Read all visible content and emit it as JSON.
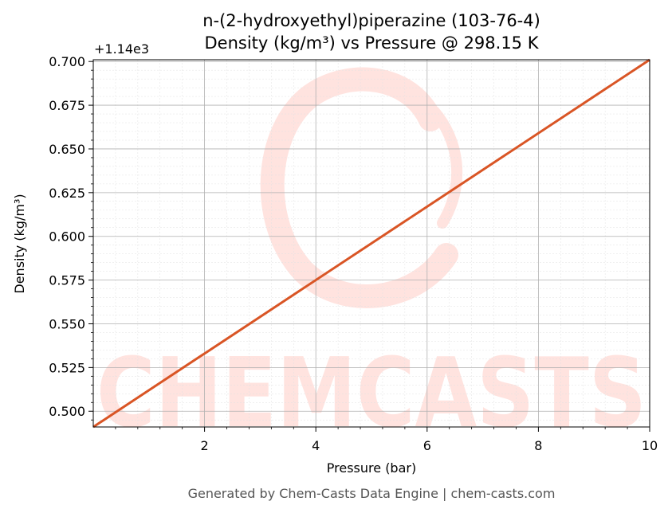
{
  "chart_data": {
    "type": "line",
    "title": "n-(2-hydroxyethyl)piperazine (103-76-4)",
    "subtitle": "Density (kg/m³) vs Pressure @ 298.15 K",
    "xlabel": "Pressure (bar)",
    "ylabel": "Density (kg/m³)",
    "y_offset_label": "+1.14e3",
    "xlim": [
      0.0,
      10.0
    ],
    "ylim": [
      0.491,
      0.701
    ],
    "x_ticks": [
      2,
      4,
      6,
      8,
      10
    ],
    "x_tick_labels": [
      "2",
      "4",
      "6",
      "8",
      "10"
    ],
    "y_ticks": [
      0.5,
      0.525,
      0.55,
      0.575,
      0.6,
      0.625,
      0.65,
      0.675,
      0.7
    ],
    "y_tick_labels": [
      "0.500",
      "0.525",
      "0.550",
      "0.575",
      "0.600",
      "0.625",
      "0.650",
      "0.675",
      "0.700"
    ],
    "grid": true,
    "series": [
      {
        "color": "#d95525",
        "x": [
          0.0,
          10.0
        ],
        "y": [
          0.491,
          0.701
        ]
      }
    ]
  },
  "watermark": {
    "text": "CHEMCASTS",
    "color": "#ffe3df"
  },
  "footer": "Generated by Chem-Casts Data Engine | chem-casts.com"
}
